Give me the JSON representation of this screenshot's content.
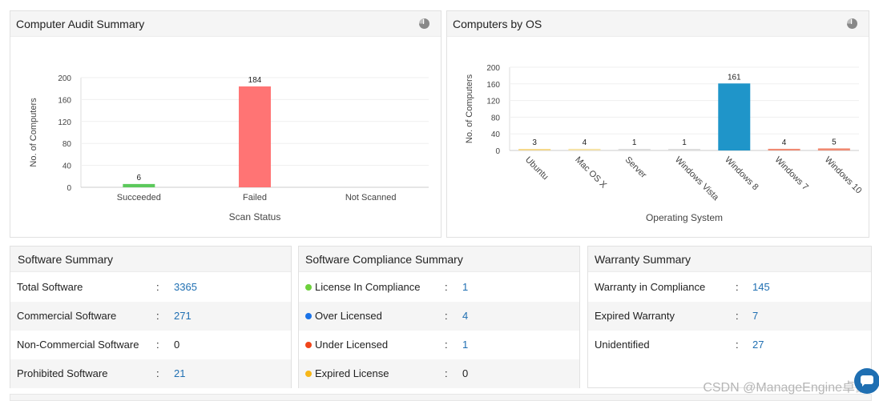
{
  "audit": {
    "title": "Computer Audit Summary",
    "icon": "pie-chart-icon",
    "chart_data": {
      "type": "bar",
      "xlabel": "Scan Status",
      "ylabel": "No. of Computers",
      "ylim": [
        0,
        200
      ],
      "yticks": [
        0,
        40,
        80,
        120,
        160,
        200
      ],
      "categories": [
        "Succeeded",
        "Failed",
        "Not Scanned"
      ],
      "values": [
        6,
        184,
        0
      ],
      "labels": [
        "6",
        "184",
        ""
      ],
      "colors": [
        "#5cc95c",
        "#ff7474",
        "#cccccc"
      ]
    }
  },
  "os": {
    "title": "Computers by OS",
    "icon": "pie-chart-icon",
    "chart_data": {
      "type": "bar",
      "xlabel": "Operating System",
      "ylabel": "No. of Computers",
      "ylim": [
        0,
        200
      ],
      "yticks": [
        0,
        40,
        80,
        120,
        160,
        200
      ],
      "categories": [
        "Ubuntu",
        "Mac OS X",
        "Server",
        "Windows Vista",
        "Windows 8",
        "Windows 7",
        "Windows 10"
      ],
      "values": [
        3,
        4,
        1,
        1,
        161,
        4,
        5
      ],
      "labels": [
        "3",
        "4",
        "1",
        "1",
        "161",
        "4",
        "5"
      ],
      "colors": [
        "#f5d98c",
        "#f5e3a8",
        "#dddddd",
        "#dddddd",
        "#1f95c9",
        "#f08a72",
        "#f08a72"
      ]
    }
  },
  "software": {
    "title": "Software Summary",
    "rows": [
      {
        "label": "Total Software",
        "value": "3365"
      },
      {
        "label": "Commercial Software",
        "value": "271"
      },
      {
        "label": "Non-Commercial Software",
        "value": "0"
      },
      {
        "label": "Prohibited Software",
        "value": "21"
      }
    ]
  },
  "compliance": {
    "title": "Software Compliance Summary",
    "rows": [
      {
        "label": "License In Compliance",
        "value": "1",
        "color": "#6dd13c"
      },
      {
        "label": "Over Licensed",
        "value": "4",
        "color": "#1a73e8"
      },
      {
        "label": "Under Licensed",
        "value": "1",
        "color": "#f0451a"
      },
      {
        "label": "Expired License",
        "value": "0",
        "color": "#f7b718"
      }
    ]
  },
  "warranty": {
    "title": "Warranty Summary",
    "rows": [
      {
        "label": "Warranty in Compliance",
        "value": "145"
      },
      {
        "label": "Expired Warranty",
        "value": "7"
      },
      {
        "label": "Unidentified",
        "value": "27"
      }
    ]
  },
  "colon": ":",
  "watermark": "CSDN @ManageEngine卓豪"
}
